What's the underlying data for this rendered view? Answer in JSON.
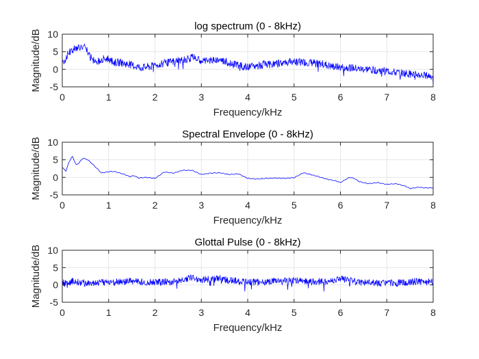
{
  "colors": {
    "series": "#0000ff",
    "grid": "#e6e6e6",
    "axis": "#262626"
  },
  "chart_data": [
    {
      "type": "line",
      "title": "log spectrum (0 - 8kHz)",
      "xlabel": "Frequency/kHz",
      "ylabel": "Magnitude/dB",
      "xlim": [
        0,
        8
      ],
      "ylim": [
        -5,
        10
      ],
      "xticks": [
        "0",
        "1",
        "2",
        "3",
        "4",
        "5",
        "6",
        "7",
        "8"
      ],
      "yticks": [
        "-5",
        "0",
        "5",
        "10"
      ],
      "grid": true,
      "series": [
        {
          "noise": 1.1,
          "x": [
            0,
            0.05,
            0.1,
            0.2,
            0.3,
            0.4,
            0.5,
            0.6,
            0.7,
            0.8,
            0.9,
            1.0,
            1.1,
            1.2,
            1.3,
            1.5,
            1.7,
            1.9,
            2.1,
            2.3,
            2.5,
            2.7,
            2.8,
            3.0,
            3.2,
            3.4,
            3.6,
            3.8,
            4.0,
            4.2,
            4.4,
            4.6,
            4.8,
            5.0,
            5.2,
            5.4,
            5.6,
            5.8,
            6.0,
            6.2,
            6.4,
            6.6,
            6.8,
            7.0,
            7.2,
            7.4,
            7.6,
            7.8,
            8.0
          ],
          "values": [
            3,
            2,
            4,
            5.5,
            6,
            6.5,
            6,
            3.5,
            2,
            2.5,
            3,
            3,
            2,
            2,
            1.8,
            1.2,
            0.5,
            0.8,
            1.5,
            2,
            2.5,
            2.8,
            3.5,
            2.5,
            2.5,
            2.8,
            1.8,
            1.0,
            0.5,
            1.0,
            1.5,
            1.5,
            2.0,
            2.2,
            2.0,
            1.8,
            1.5,
            0.8,
            0.5,
            0.5,
            0.0,
            0.0,
            -0.3,
            -0.5,
            -1.0,
            -1.2,
            -1.5,
            -1.8,
            -2.0
          ]
        }
      ]
    },
    {
      "type": "line",
      "title": "Spectral Envelope (0 - 8kHz)",
      "xlabel": "Frequency/kHz",
      "ylabel": "Magnitude/dB",
      "xlim": [
        0,
        8
      ],
      "ylim": [
        -5,
        10
      ],
      "xticks": [
        "0",
        "1",
        "2",
        "3",
        "4",
        "5",
        "6",
        "7",
        "8"
      ],
      "yticks": [
        "-5",
        "0",
        "5",
        "10"
      ],
      "grid": true,
      "series": [
        {
          "noise": 0,
          "x": [
            0,
            0.08,
            0.15,
            0.22,
            0.3,
            0.35,
            0.45,
            0.55,
            0.65,
            0.75,
            0.85,
            0.95,
            1.05,
            1.15,
            1.25,
            1.35,
            1.45,
            1.55,
            1.65,
            1.8,
            2.0,
            2.2,
            2.4,
            2.6,
            2.8,
            3.0,
            3.2,
            3.4,
            3.6,
            3.8,
            4.0,
            4.2,
            4.4,
            4.6,
            4.8,
            5.0,
            5.2,
            5.3,
            5.5,
            5.7,
            5.9,
            6.0,
            6.1,
            6.2,
            6.3,
            6.4,
            6.6,
            6.8,
            7.0,
            7.2,
            7.4,
            7.5,
            7.7,
            7.8,
            8.0
          ],
          "values": [
            2.8,
            1.8,
            4.5,
            6.0,
            3.5,
            4.0,
            5.5,
            5.0,
            3.8,
            2.5,
            1.2,
            1.5,
            1.7,
            1.6,
            1.2,
            0.8,
            0.2,
            0.5,
            -0.2,
            0.0,
            -0.3,
            1.5,
            1.2,
            2.0,
            2.0,
            0.8,
            1.2,
            1.3,
            0.8,
            1.0,
            -0.3,
            -0.5,
            -0.3,
            -0.2,
            -0.3,
            -0.1,
            1.3,
            1.0,
            0.3,
            -0.5,
            -1.0,
            -1.5,
            -0.7,
            0.0,
            -0.3,
            -1.2,
            -1.8,
            -1.5,
            -2.0,
            -1.8,
            -2.5,
            -3.2,
            -2.8,
            -3.0,
            -3.0
          ]
        }
      ]
    },
    {
      "type": "line",
      "title": "Glottal Pulse (0 - 8kHz)",
      "xlabel": "Frequency/kHz",
      "ylabel": "Magnitude/dB",
      "xlim": [
        0,
        8
      ],
      "ylim": [
        -5,
        10
      ],
      "xticks": [
        "0",
        "1",
        "2",
        "3",
        "4",
        "5",
        "6",
        "7",
        "8"
      ],
      "yticks": [
        "-5",
        "0",
        "5",
        "10"
      ],
      "grid": true,
      "series": [
        {
          "noise": 1.0,
          "x": [
            0,
            0.1,
            0.2,
            0.3,
            0.5,
            1.0,
            1.5,
            2.0,
            2.5,
            2.8,
            3.0,
            3.4,
            3.8,
            4.2,
            4.6,
            5.0,
            5.4,
            5.8,
            6.0,
            6.4,
            6.8,
            7.2,
            7.6,
            8.0
          ],
          "values": [
            1.0,
            0.0,
            1.2,
            1.0,
            0.5,
            0.8,
            1.0,
            0.8,
            1.0,
            2.2,
            1.5,
            1.8,
            1.0,
            0.8,
            1.0,
            1.2,
            1.0,
            1.0,
            1.8,
            0.8,
            0.5,
            0.5,
            1.0,
            0.8
          ]
        }
      ]
    }
  ]
}
